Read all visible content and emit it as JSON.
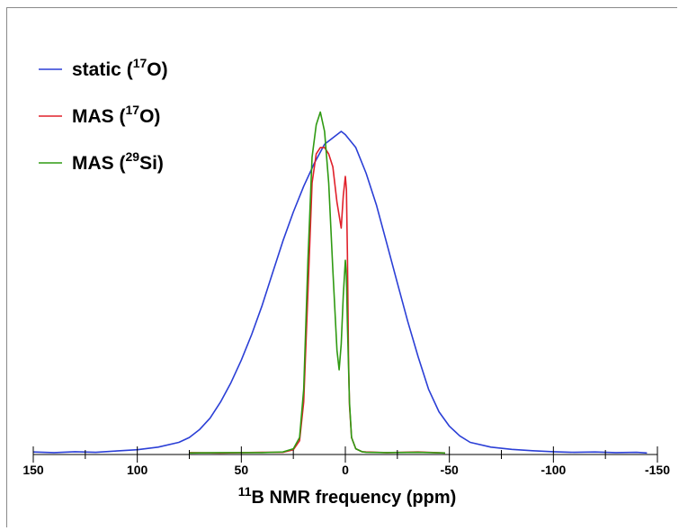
{
  "chart_data": {
    "type": "line",
    "xlabel": {
      "sup": "11",
      "main": "B NMR frequency (ppm)"
    },
    "x_axis": {
      "xlim": [
        150,
        -150
      ],
      "reversed": true,
      "ticks": [
        150,
        100,
        50,
        0,
        -50,
        -100,
        -150
      ],
      "minor_step": 25
    },
    "ylim": [
      0,
      1.0
    ],
    "grid": false,
    "legend_position": "top-left",
    "series": [
      {
        "name": "static (17O)",
        "label": {
          "pre": "static (",
          "sup": "17",
          "post": "O)"
        },
        "color": "#2b3fd6",
        "x": [
          150,
          140,
          130,
          120,
          110,
          100,
          90,
          80,
          75,
          70,
          65,
          60,
          55,
          50,
          45,
          40,
          35,
          30,
          25,
          20,
          15,
          10,
          5,
          2,
          0,
          -5,
          -10,
          -15,
          -20,
          -25,
          -30,
          -35,
          -40,
          -45,
          -50,
          -55,
          -60,
          -70,
          -80,
          -90,
          -100,
          -110,
          -120,
          -130,
          -140,
          -145
        ],
        "y": [
          0.005,
          0.003,
          0.006,
          0.004,
          0.008,
          0.012,
          0.02,
          0.035,
          0.05,
          0.075,
          0.11,
          0.16,
          0.22,
          0.29,
          0.37,
          0.46,
          0.56,
          0.66,
          0.75,
          0.83,
          0.9,
          0.96,
          0.985,
          1.0,
          0.99,
          0.95,
          0.87,
          0.77,
          0.65,
          0.53,
          0.41,
          0.3,
          0.2,
          0.13,
          0.085,
          0.055,
          0.035,
          0.02,
          0.013,
          0.009,
          0.006,
          0.004,
          0.005,
          0.003,
          0.004,
          0.002
        ]
      },
      {
        "name": "MAS (17O)",
        "label": {
          "pre": "MAS (",
          "sup": "17",
          "post": "O)"
        },
        "color": "#e0202a",
        "x": [
          75,
          60,
          40,
          30,
          25,
          22,
          20,
          18,
          16,
          14,
          12,
          10,
          8,
          6,
          4,
          2,
          1,
          0,
          -0.5,
          -1,
          -1.5,
          -2,
          -3,
          -5,
          -8,
          -10,
          -20,
          -35,
          -48
        ],
        "y": [
          0.003,
          0.002,
          0.004,
          0.004,
          0.012,
          0.04,
          0.16,
          0.5,
          0.84,
          0.93,
          0.95,
          0.95,
          0.93,
          0.89,
          0.78,
          0.7,
          0.8,
          0.86,
          0.82,
          0.62,
          0.3,
          0.15,
          0.05,
          0.015,
          0.006,
          0.005,
          0.003,
          0.005,
          0.002
        ]
      },
      {
        "name": "MAS (29Si)",
        "label": {
          "pre": "MAS (",
          "sup": "29",
          "post": "Si)"
        },
        "color": "#2f9a12",
        "x": [
          75,
          60,
          40,
          30,
          25,
          22,
          20,
          18,
          16,
          14,
          12,
          10,
          8,
          6,
          4,
          3,
          2,
          1,
          0,
          -0.5,
          -1,
          -2,
          -3,
          -5,
          -8,
          -10,
          -20,
          -35,
          -48
        ],
        "y": [
          0.002,
          0.003,
          0.003,
          0.005,
          0.015,
          0.05,
          0.2,
          0.6,
          0.92,
          1.02,
          1.06,
          1.0,
          0.84,
          0.57,
          0.32,
          0.26,
          0.34,
          0.49,
          0.6,
          0.55,
          0.4,
          0.16,
          0.05,
          0.015,
          0.006,
          0.004,
          0.003,
          0.004,
          0.002
        ]
      }
    ]
  }
}
